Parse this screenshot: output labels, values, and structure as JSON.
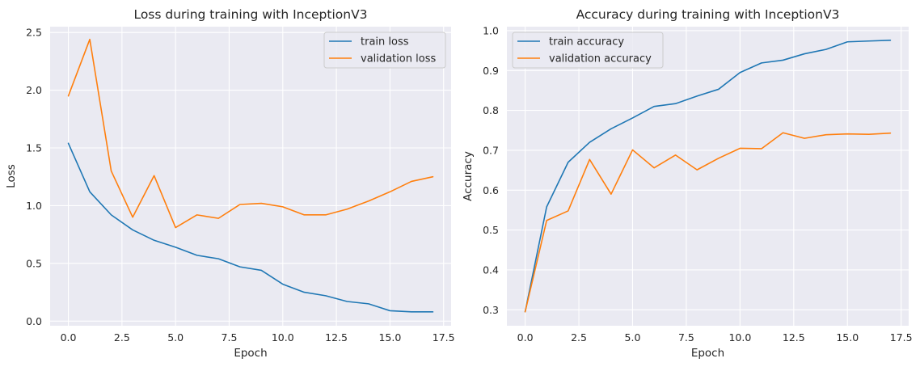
{
  "chart_data": [
    {
      "type": "line",
      "title": "Loss during training with InceptionV3",
      "xlabel": "Epoch",
      "ylabel": "Loss",
      "x": [
        0,
        1,
        2,
        3,
        4,
        5,
        6,
        7,
        8,
        9,
        10,
        11,
        12,
        13,
        14,
        15,
        16,
        17
      ],
      "xlim": [
        -0.85,
        17.85
      ],
      "ylim": [
        -0.04,
        2.55
      ],
      "xticks": [
        0.0,
        2.5,
        5.0,
        7.5,
        10.0,
        12.5,
        15.0,
        17.5
      ],
      "xtick_labels": [
        "0.0",
        "2.5",
        "5.0",
        "7.5",
        "10.0",
        "12.5",
        "15.0",
        "17.5"
      ],
      "yticks": [
        0.0,
        0.5,
        1.0,
        1.5,
        2.0,
        2.5
      ],
      "ytick_labels": [
        "0.0",
        "0.5",
        "1.0",
        "1.5",
        "2.0",
        "2.5"
      ],
      "grid": true,
      "legend_position": "upper right",
      "series": [
        {
          "name": "train loss",
          "color": "#1f77b4",
          "values": [
            1.54,
            1.12,
            0.92,
            0.79,
            0.7,
            0.64,
            0.57,
            0.54,
            0.47,
            0.44,
            0.32,
            0.25,
            0.22,
            0.17,
            0.15,
            0.09,
            0.08,
            0.08
          ]
        },
        {
          "name": "validation loss",
          "color": "#ff7f0e",
          "values": [
            1.95,
            2.44,
            1.3,
            0.9,
            1.26,
            0.81,
            0.92,
            0.89,
            1.01,
            1.02,
            0.99,
            0.92,
            0.92,
            0.97,
            1.04,
            1.12,
            1.21,
            1.25
          ]
        }
      ]
    },
    {
      "type": "line",
      "title": "Accuracy during training with InceptionV3",
      "xlabel": "Epoch",
      "ylabel": "Accuracy",
      "x": [
        0,
        1,
        2,
        3,
        4,
        5,
        6,
        7,
        8,
        9,
        10,
        11,
        12,
        13,
        14,
        15,
        16,
        17
      ],
      "xlim": [
        -0.85,
        17.85
      ],
      "ylim": [
        0.26,
        1.01
      ],
      "xticks": [
        0.0,
        2.5,
        5.0,
        7.5,
        10.0,
        12.5,
        15.0,
        17.5
      ],
      "xtick_labels": [
        "0.0",
        "2.5",
        "5.0",
        "7.5",
        "10.0",
        "12.5",
        "15.0",
        "17.5"
      ],
      "yticks": [
        0.3,
        0.4,
        0.5,
        0.6,
        0.7,
        0.8,
        0.9,
        1.0
      ],
      "ytick_labels": [
        "0.3",
        "0.4",
        "0.5",
        "0.6",
        "0.7",
        "0.8",
        "0.9",
        "1.0"
      ],
      "grid": true,
      "legend_position": "upper left",
      "series": [
        {
          "name": "train accuracy",
          "color": "#1f77b4",
          "values": [
            0.295,
            0.558,
            0.67,
            0.72,
            0.754,
            0.781,
            0.81,
            0.817,
            0.836,
            0.853,
            0.895,
            0.919,
            0.926,
            0.942,
            0.953,
            0.972,
            0.974,
            0.976
          ]
        },
        {
          "name": "validation accuracy",
          "color": "#ff7f0e",
          "values": [
            0.295,
            0.524,
            0.548,
            0.677,
            0.59,
            0.701,
            0.656,
            0.688,
            0.651,
            0.68,
            0.705,
            0.704,
            0.744,
            0.73,
            0.739,
            0.741,
            0.74,
            0.743
          ]
        }
      ]
    }
  ]
}
